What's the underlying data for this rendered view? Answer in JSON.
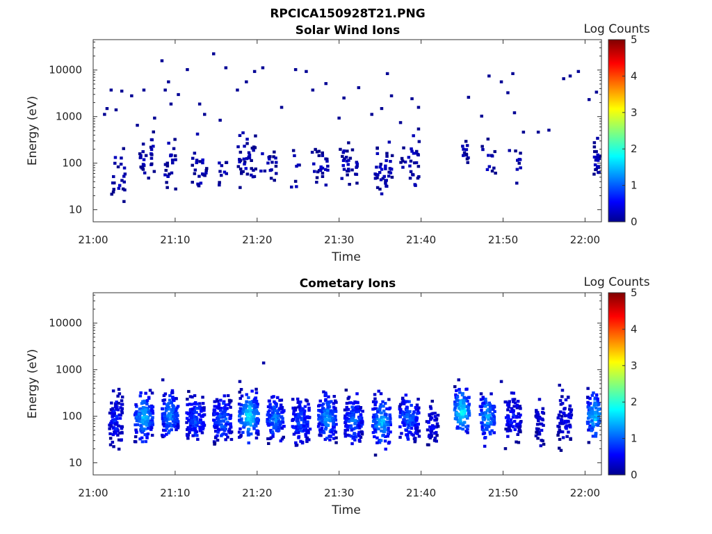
{
  "figure_title": "RPCICA150928T21.PNG",
  "chart_data": [
    {
      "type": "heatmap",
      "title": "Solar Wind Ions",
      "xlabel": "Time",
      "ylabel": "Energy (eV)",
      "x_ticks": [
        "21:00",
        "21:10",
        "21:20",
        "21:30",
        "21:40",
        "21:50",
        "22:00"
      ],
      "y_ticks": [
        "10",
        "100",
        "1000",
        "10000"
      ],
      "y_scale": "log",
      "xlim": [
        "21:00",
        "22:02"
      ],
      "ylim": [
        5.5,
        45000
      ],
      "colorbar": {
        "label": "Log Counts",
        "range": [
          0,
          5
        ],
        "ticks": [
          "0",
          "1",
          "2",
          "3",
          "4",
          "5"
        ],
        "colormap": "jet"
      },
      "grid": false,
      "points": [
        {
          "t": 1.2,
          "e": 1200,
          "c": 0.1
        },
        {
          "t": 1.5,
          "e": 1600,
          "c": 0.1
        },
        {
          "t": 2.0,
          "e": 4000,
          "c": 0.1
        },
        {
          "t": 2.6,
          "e": 1500,
          "c": 0.1
        },
        {
          "t": 3.3,
          "e": 3800,
          "c": 0.1
        },
        {
          "t": 4.5,
          "e": 3000,
          "c": 0.1
        },
        {
          "t": 5.2,
          "e": 700,
          "c": 0.1
        },
        {
          "t": 6.0,
          "e": 4000,
          "c": 0.1
        },
        {
          "t": 7.3,
          "e": 1000,
          "c": 0.1
        },
        {
          "t": 8.2,
          "e": 17000,
          "c": 0.1
        },
        {
          "t": 8.6,
          "e": 4000,
          "c": 0.1
        },
        {
          "t": 9.0,
          "e": 6000,
          "c": 0.1
        },
        {
          "t": 9.3,
          "e": 2000,
          "c": 0.1
        },
        {
          "t": 10.2,
          "e": 3200,
          "c": 0.1
        },
        {
          "t": 11.3,
          "e": 11000,
          "c": 0.1
        },
        {
          "t": 12.8,
          "e": 2000,
          "c": 0.1
        },
        {
          "t": 13.4,
          "e": 1200,
          "c": 0.1
        },
        {
          "t": 14.5,
          "e": 24000,
          "c": 0.1
        },
        {
          "t": 15.3,
          "e": 900,
          "c": 0.1
        },
        {
          "t": 16.0,
          "e": 12000,
          "c": 0.1
        },
        {
          "t": 17.4,
          "e": 4000,
          "c": 0.1
        },
        {
          "t": 18.5,
          "e": 6000,
          "c": 0.1
        },
        {
          "t": 19.5,
          "e": 10000,
          "c": 0.1
        },
        {
          "t": 20.5,
          "e": 12000,
          "c": 0.1
        },
        {
          "t": 22.8,
          "e": 1700,
          "c": 0.1
        },
        {
          "t": 24.5,
          "e": 11000,
          "c": 0.1
        },
        {
          "t": 25.8,
          "e": 10000,
          "c": 0.1
        },
        {
          "t": 26.6,
          "e": 4000,
          "c": 0.1
        },
        {
          "t": 28.2,
          "e": 5500,
          "c": 0.1
        },
        {
          "t": 29.8,
          "e": 1000,
          "c": 0.1
        },
        {
          "t": 30.4,
          "e": 2700,
          "c": 0.1
        },
        {
          "t": 32.2,
          "e": 4500,
          "c": 0.1
        },
        {
          "t": 33.8,
          "e": 1200,
          "c": 0.1
        },
        {
          "t": 35.0,
          "e": 1600,
          "c": 0.1
        },
        {
          "t": 35.7,
          "e": 9000,
          "c": 0.1
        },
        {
          "t": 36.2,
          "e": 3000,
          "c": 0.1
        },
        {
          "t": 37.3,
          "e": 800,
          "c": 0.1
        },
        {
          "t": 38.7,
          "e": 2600,
          "c": 0.1
        },
        {
          "t": 39.5,
          "e": 1700,
          "c": 0.1
        },
        {
          "t": 45.6,
          "e": 2800,
          "c": 0.1
        },
        {
          "t": 47.2,
          "e": 1100,
          "c": 0.1
        },
        {
          "t": 48.1,
          "e": 8000,
          "c": 0.1
        },
        {
          "t": 49.6,
          "e": 6000,
          "c": 0.1
        },
        {
          "t": 50.4,
          "e": 3500,
          "c": 0.1
        },
        {
          "t": 51.0,
          "e": 9000,
          "c": 0.1
        },
        {
          "t": 51.2,
          "e": 1300,
          "c": 0.1
        },
        {
          "t": 52.3,
          "e": 500,
          "c": 0.1
        },
        {
          "t": 54.1,
          "e": 500,
          "c": 0.1
        },
        {
          "t": 55.4,
          "e": 550,
          "c": 0.1
        },
        {
          "t": 57.2,
          "e": 7000,
          "c": 0.1
        },
        {
          "t": 58.0,
          "e": 8000,
          "c": 0.1
        },
        {
          "t": 59.0,
          "e": 10000,
          "c": 0.1
        },
        {
          "t": 60.3,
          "e": 2500,
          "c": 0.1
        },
        {
          "t": 61.2,
          "e": 3600,
          "c": 0.1
        }
      ],
      "blobs": [
        {
          "t": 2.8,
          "spread": 0.9,
          "e_center": 60,
          "e_sigma": 0.55,
          "n": 22,
          "c": 0.2
        },
        {
          "t": 6.4,
          "spread": 0.9,
          "e_center": 150,
          "e_sigma": 0.45,
          "n": 30,
          "c": 0.2
        },
        {
          "t": 9.2,
          "spread": 0.7,
          "e_center": 120,
          "e_sigma": 0.5,
          "n": 22,
          "c": 0.2
        },
        {
          "t": 12.8,
          "spread": 0.9,
          "e_center": 90,
          "e_sigma": 0.45,
          "n": 24,
          "c": 0.2
        },
        {
          "t": 15.6,
          "spread": 0.5,
          "e_center": 80,
          "e_sigma": 0.45,
          "n": 10,
          "c": 0.2
        },
        {
          "t": 18.6,
          "spread": 1.1,
          "e_center": 120,
          "e_sigma": 0.5,
          "n": 38,
          "c": 0.2
        },
        {
          "t": 21.2,
          "spread": 1.0,
          "e_center": 100,
          "e_sigma": 0.4,
          "n": 18,
          "c": 0.2
        },
        {
          "t": 24.5,
          "spread": 0.5,
          "e_center": 70,
          "e_sigma": 0.5,
          "n": 8,
          "c": 0.2
        },
        {
          "t": 27.5,
          "spread": 1.0,
          "e_center": 80,
          "e_sigma": 0.4,
          "n": 26,
          "c": 0.2
        },
        {
          "t": 31.0,
          "spread": 1.1,
          "e_center": 90,
          "e_sigma": 0.45,
          "n": 30,
          "c": 0.2
        },
        {
          "t": 35.2,
          "spread": 1.1,
          "e_center": 90,
          "e_sigma": 0.5,
          "n": 40,
          "c": 0.2
        },
        {
          "t": 38.4,
          "spread": 1.2,
          "e_center": 120,
          "e_sigma": 0.5,
          "n": 30,
          "c": 0.2
        },
        {
          "t": 45.2,
          "spread": 0.4,
          "e_center": 180,
          "e_sigma": 0.3,
          "n": 12,
          "c": 0.2
        },
        {
          "t": 48.0,
          "spread": 0.9,
          "e_center": 120,
          "e_sigma": 0.5,
          "n": 12,
          "c": 0.2
        },
        {
          "t": 51.0,
          "spread": 1.0,
          "e_center": 100,
          "e_sigma": 0.4,
          "n": 10,
          "c": 0.2
        },
        {
          "t": 61.3,
          "spread": 0.4,
          "e_center": 120,
          "e_sigma": 0.35,
          "n": 26,
          "c": 0.2
        }
      ]
    },
    {
      "type": "heatmap",
      "title": "Cometary Ions",
      "xlabel": "Time",
      "ylabel": "Energy (eV)",
      "x_ticks": [
        "21:00",
        "21:10",
        "21:20",
        "21:30",
        "21:40",
        "21:50",
        "22:00"
      ],
      "y_ticks": [
        "10",
        "100",
        "1000",
        "10000"
      ],
      "y_scale": "log",
      "xlim": [
        "21:00",
        "22:02"
      ],
      "ylim": [
        5.5,
        45000
      ],
      "colorbar": {
        "label": "Log Counts",
        "range": [
          0,
          5
        ],
        "ticks": [
          "0",
          "1",
          "2",
          "3",
          "4",
          "5"
        ],
        "colormap": "jet"
      },
      "grid": false,
      "points": [
        {
          "t": 8.3,
          "e": 650,
          "c": 0.2
        },
        {
          "t": 17.7,
          "e": 600,
          "c": 0.2
        },
        {
          "t": 20.6,
          "e": 1500,
          "c": 0.2
        },
        {
          "t": 44.4,
          "e": 650,
          "c": 0.2
        },
        {
          "t": 49.6,
          "e": 600,
          "c": 0.2
        },
        {
          "t": 56.7,
          "e": 500,
          "c": 0.2
        }
      ],
      "blobs": [
        {
          "t": 2.6,
          "spread": 0.8,
          "e_center": 90,
          "e_sigma": 0.5,
          "n": 90,
          "c": 0.6
        },
        {
          "t": 6.0,
          "spread": 1.1,
          "e_center": 100,
          "e_sigma": 0.45,
          "n": 140,
          "c": 1.2
        },
        {
          "t": 9.2,
          "spread": 1.0,
          "e_center": 110,
          "e_sigma": 0.45,
          "n": 130,
          "c": 1.1
        },
        {
          "t": 12.3,
          "spread": 1.1,
          "e_center": 95,
          "e_sigma": 0.45,
          "n": 130,
          "c": 0.8
        },
        {
          "t": 15.6,
          "spread": 1.1,
          "e_center": 90,
          "e_sigma": 0.45,
          "n": 130,
          "c": 0.9
        },
        {
          "t": 18.8,
          "spread": 1.2,
          "e_center": 110,
          "e_sigma": 0.45,
          "n": 160,
          "c": 1.4
        },
        {
          "t": 22.0,
          "spread": 1.1,
          "e_center": 95,
          "e_sigma": 0.45,
          "n": 130,
          "c": 1.0
        },
        {
          "t": 25.2,
          "spread": 1.1,
          "e_center": 80,
          "e_sigma": 0.45,
          "n": 120,
          "c": 0.8
        },
        {
          "t": 28.4,
          "spread": 1.1,
          "e_center": 100,
          "e_sigma": 0.45,
          "n": 140,
          "c": 1.1
        },
        {
          "t": 31.6,
          "spread": 1.1,
          "e_center": 90,
          "e_sigma": 0.45,
          "n": 130,
          "c": 0.9
        },
        {
          "t": 35.0,
          "spread": 1.1,
          "e_center": 80,
          "e_sigma": 0.45,
          "n": 130,
          "c": 1.2
        },
        {
          "t": 38.4,
          "spread": 1.2,
          "e_center": 100,
          "e_sigma": 0.45,
          "n": 130,
          "c": 0.9
        },
        {
          "t": 41.2,
          "spread": 0.7,
          "e_center": 70,
          "e_sigma": 0.4,
          "n": 50,
          "c": 0.5
        },
        {
          "t": 44.8,
          "spread": 0.9,
          "e_center": 130,
          "e_sigma": 0.45,
          "n": 120,
          "c": 1.5
        },
        {
          "t": 47.9,
          "spread": 0.9,
          "e_center": 110,
          "e_sigma": 0.45,
          "n": 100,
          "c": 1.2
        },
        {
          "t": 51.0,
          "spread": 1.0,
          "e_center": 95,
          "e_sigma": 0.45,
          "n": 80,
          "c": 0.6
        },
        {
          "t": 54.3,
          "spread": 0.5,
          "e_center": 80,
          "e_sigma": 0.45,
          "n": 40,
          "c": 0.4
        },
        {
          "t": 57.4,
          "spread": 0.9,
          "e_center": 90,
          "e_sigma": 0.45,
          "n": 60,
          "c": 0.4
        },
        {
          "t": 61.0,
          "spread": 0.9,
          "e_center": 110,
          "e_sigma": 0.45,
          "n": 120,
          "c": 1.3
        }
      ]
    }
  ]
}
